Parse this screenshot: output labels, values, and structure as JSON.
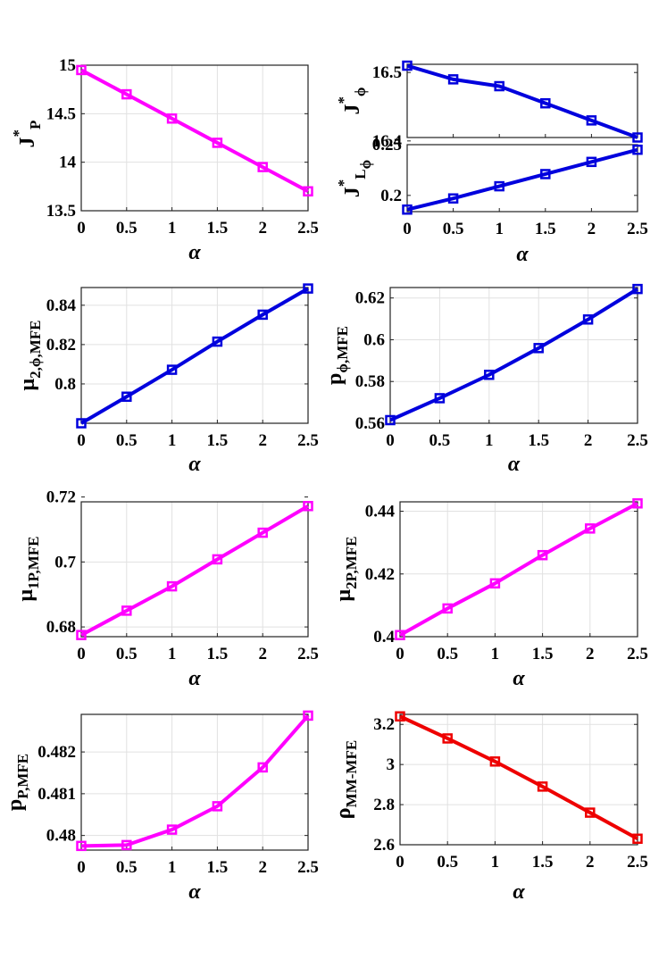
{
  "chart_data": [
    {
      "id": "JP",
      "type": "line",
      "ylabel": {
        "parts": [
          {
            "t": "J",
            "s": "main"
          },
          {
            "t": "*",
            "s": "sup"
          },
          {
            "t": "P",
            "s": "sub"
          }
        ]
      },
      "xlabel": "α",
      "x": [
        0,
        0.5,
        1,
        1.5,
        2,
        2.5
      ],
      "xlim": [
        0,
        2.5
      ],
      "xticks": [
        "0",
        "0.5",
        "1",
        "1.5",
        "2",
        "2.5"
      ],
      "series": [
        {
          "values": [
            14.95,
            14.7,
            14.45,
            14.2,
            13.95,
            13.7
          ]
        }
      ],
      "ylim": [
        13.5,
        15
      ],
      "yticks": [
        13.5,
        14,
        14.5,
        15
      ],
      "ytick_labels": [
        "13.5",
        "14",
        "14.5",
        "15"
      ],
      "color": "#FF00FF",
      "marker": "square",
      "grid": true
    },
    {
      "id": "Jphi",
      "type": "line",
      "ylabel": {
        "parts": [
          {
            "t": "J",
            "s": "main"
          },
          {
            "t": "*",
            "s": "sup"
          },
          {
            "t": "ϕ",
            "s": "sub"
          }
        ]
      },
      "xlabel": "",
      "x": [
        0,
        0.5,
        1,
        1.5,
        2,
        2.5
      ],
      "xlim": [
        0,
        2.5
      ],
      "xticks": [],
      "series": [
        {
          "values": [
            16.51,
            16.49,
            16.48,
            16.455,
            16.43,
            16.405
          ]
        }
      ],
      "ylim": [
        16.405,
        16.512
      ],
      "yticks": [
        16.4,
        16.5
      ],
      "ytick_labels": [
        "16.4",
        "16.5"
      ],
      "color": "#0000DD",
      "marker": "square",
      "grid": false
    },
    {
      "id": "JLphi",
      "type": "line",
      "ylabel": {
        "parts": [
          {
            "t": "J",
            "s": "main"
          },
          {
            "t": "*",
            "s": "sup"
          },
          {
            "t": "L",
            "s": "sub"
          },
          {
            "t": "ϕ",
            "s": "subsub"
          }
        ]
      },
      "xlabel": "α",
      "x": [
        0,
        0.5,
        1,
        1.5,
        2,
        2.5
      ],
      "xlim": [
        0,
        2.5
      ],
      "xticks": [
        "0",
        "0.5",
        "1",
        "1.5",
        "2",
        "2.5"
      ],
      "series": [
        {
          "values": [
            0.186,
            0.197,
            0.209,
            0.221,
            0.233,
            0.245
          ]
        }
      ],
      "ylim": [
        0.184,
        0.25
      ],
      "yticks": [
        0.2,
        0.25
      ],
      "ytick_labels": [
        "0.2",
        "0.25"
      ],
      "color": "#0000DD",
      "marker": "square",
      "grid": false
    },
    {
      "id": "mu2phi",
      "type": "line",
      "ylabel": {
        "parts": [
          {
            "t": "μ",
            "s": "main"
          },
          {
            "t": "2,ϕ,MFE",
            "s": "sub"
          }
        ]
      },
      "xlabel": "α",
      "x": [
        0,
        0.5,
        1,
        1.5,
        2,
        2.5
      ],
      "xlim": [
        0,
        2.5
      ],
      "xticks": [
        "0",
        "0.5",
        "1",
        "1.5",
        "2",
        "2.5"
      ],
      "series": [
        {
          "values": [
            0.78,
            0.7935,
            0.8072,
            0.8215,
            0.8352,
            0.8485
          ]
        }
      ],
      "ylim": [
        0.78,
        0.849
      ],
      "yticks": [
        0.8,
        0.82,
        0.84
      ],
      "ytick_labels": [
        "0.8",
        "0.82",
        "0.84"
      ],
      "color": "#0000DD",
      "marker": "square",
      "grid": true
    },
    {
      "id": "pphi",
      "type": "line",
      "ylabel": {
        "parts": [
          {
            "t": "p",
            "s": "main"
          },
          {
            "t": "ϕ,MFE",
            "s": "sub"
          }
        ]
      },
      "xlabel": "α",
      "x": [
        0,
        0.5,
        1,
        1.5,
        2,
        2.5
      ],
      "xlim": [
        0,
        2.5
      ],
      "xticks": [
        "0",
        "0.5",
        "1",
        "1.5",
        "2",
        "2.5"
      ],
      "series": [
        {
          "values": [
            0.5615,
            0.572,
            0.5832,
            0.596,
            0.6097,
            0.6243
          ]
        }
      ],
      "ylim": [
        0.56,
        0.625
      ],
      "yticks": [
        0.56,
        0.58,
        0.6,
        0.62
      ],
      "ytick_labels": [
        "0.56",
        "0.58",
        "0.6",
        "0.62"
      ],
      "color": "#0000DD",
      "marker": "square",
      "grid": true
    },
    {
      "id": "mu1P",
      "type": "line",
      "ylabel": {
        "parts": [
          {
            "t": "μ",
            "s": "main"
          },
          {
            "t": "1P,MFE",
            "s": "sub"
          }
        ]
      },
      "xlabel": "α",
      "x": [
        0,
        0.5,
        1,
        1.5,
        2,
        2.5
      ],
      "xlim": [
        0,
        2.5
      ],
      "xticks": [
        "0",
        "0.5",
        "1",
        "1.5",
        "2",
        "2.5"
      ],
      "series": [
        {
          "values": [
            0.6775,
            0.685,
            0.6925,
            0.7008,
            0.709,
            0.7172
          ]
        }
      ],
      "ylim": [
        0.677,
        0.7185
      ],
      "yticks": [
        0.68,
        0.7,
        0.72
      ],
      "ytick_labels": [
        "0.68",
        "0.7",
        "0.72"
      ],
      "color": "#FF00FF",
      "marker": "square",
      "grid": true
    },
    {
      "id": "mu2P",
      "type": "line",
      "ylabel": {
        "parts": [
          {
            "t": "μ",
            "s": "main"
          },
          {
            "t": "2P,MFE",
            "s": "sub"
          }
        ]
      },
      "xlabel": "α",
      "x": [
        0,
        0.5,
        1,
        1.5,
        2,
        2.5
      ],
      "xlim": [
        0,
        2.5
      ],
      "xticks": [
        "0",
        "0.5",
        "1",
        "1.5",
        "2",
        "2.5"
      ],
      "series": [
        {
          "values": [
            0.4005,
            0.409,
            0.417,
            0.426,
            0.4345,
            0.4425
          ]
        }
      ],
      "ylim": [
        0.4,
        0.443
      ],
      "yticks": [
        0.4,
        0.42,
        0.44
      ],
      "ytick_labels": [
        "0.4",
        "0.42",
        "0.44"
      ],
      "color": "#FF00FF",
      "marker": "square",
      "grid": true
    },
    {
      "id": "pP",
      "type": "line",
      "ylabel": {
        "parts": [
          {
            "t": "p",
            "s": "main"
          },
          {
            "t": "P,MFE",
            "s": "sub"
          }
        ]
      },
      "xlabel": "α",
      "x": [
        0,
        0.5,
        1,
        1.5,
        2,
        2.5
      ],
      "xlim": [
        0,
        2.5
      ],
      "xticks": [
        "0",
        "0.5",
        "1",
        "1.5",
        "2",
        "2.5"
      ],
      "series": [
        {
          "values": [
            0.47975,
            0.47977,
            0.48014,
            0.4807,
            0.48163,
            0.48287
          ]
        }
      ],
      "ylim": [
        0.47965,
        0.4829
      ],
      "yticks": [
        0.48,
        0.481,
        0.482
      ],
      "ytick_labels": [
        "0.48",
        "0.481",
        "0.482"
      ],
      "color": "#FF00FF",
      "marker": "square",
      "grid": true
    },
    {
      "id": "rho",
      "type": "line",
      "ylabel": {
        "parts": [
          {
            "t": "ρ",
            "s": "main"
          },
          {
            "t": "MM-MFE",
            "s": "sub"
          }
        ]
      },
      "xlabel": "α",
      "x": [
        0,
        0.5,
        1,
        1.5,
        2,
        2.5
      ],
      "xlim": [
        0,
        2.5
      ],
      "xticks": [
        "0",
        "0.5",
        "1",
        "1.5",
        "2",
        "2.5"
      ],
      "series": [
        {
          "values": [
            3.24,
            3.13,
            3.015,
            2.89,
            2.76,
            2.63
          ]
        }
      ],
      "ylim": [
        2.6,
        3.25
      ],
      "yticks": [
        2.6,
        2.8,
        3,
        3.2
      ],
      "ytick_labels": [
        "2.6",
        "2.8",
        "3",
        "3.2"
      ],
      "color": "#EE0000",
      "marker": "square",
      "grid": true
    }
  ]
}
